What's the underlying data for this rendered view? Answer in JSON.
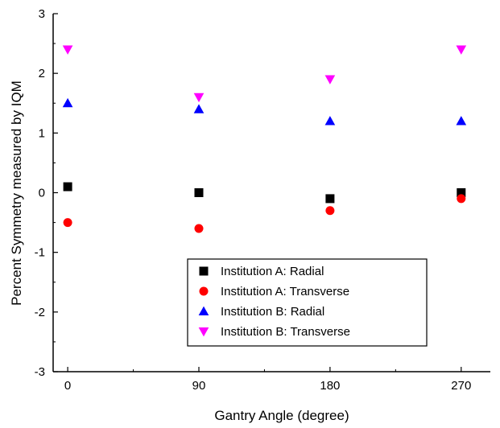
{
  "chart_data": {
    "type": "scatter",
    "xlabel": "Gantry Angle (degree)",
    "ylabel": "Percent Symmetry measured by IQM",
    "xlim": [
      -10,
      290
    ],
    "ylim": [
      -3,
      3
    ],
    "x_ticks": [
      0,
      90,
      180,
      270
    ],
    "y_ticks": [
      -3,
      -2,
      -1,
      0,
      1,
      2,
      3
    ],
    "grid": false,
    "legend_position": "bottom-center",
    "series": [
      {
        "name": "Institution A: Radial",
        "marker": "square",
        "color": "#000000",
        "x": [
          0,
          90,
          180,
          270
        ],
        "y": [
          0.1,
          0.0,
          -0.1,
          0.0
        ]
      },
      {
        "name": "Institution A: Transverse",
        "marker": "circle",
        "color": "#ff0000",
        "x": [
          0,
          90,
          180,
          270
        ],
        "y": [
          -0.5,
          -0.6,
          -0.3,
          -0.1
        ]
      },
      {
        "name": "Institution B: Radial",
        "marker": "triangle-up",
        "color": "#0000ff",
        "x": [
          0,
          90,
          180,
          270
        ],
        "y": [
          1.5,
          1.4,
          1.2,
          1.2
        ]
      },
      {
        "name": "Institution B: Transverse",
        "marker": "triangle-down",
        "color": "#ff00ff",
        "x": [
          0,
          90,
          180,
          270
        ],
        "y": [
          2.4,
          1.6,
          1.9,
          2.4
        ]
      }
    ]
  }
}
